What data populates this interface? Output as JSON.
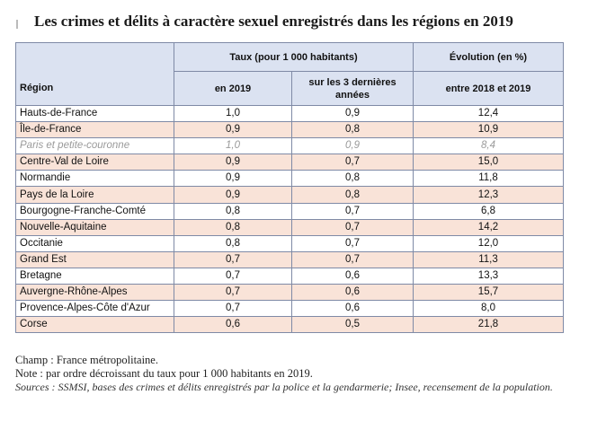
{
  "title": "Les crimes et délits à caractère sexuel enregistrés dans les régions en 2019",
  "header": {
    "taux_group": "Taux (pour 1 000 habitants)",
    "evolution_group": "Évolution (en %)",
    "region": "Région",
    "col_2019": "en 2019",
    "col_3ans_line1": "sur les 3 dernières",
    "col_3ans_line2": "années",
    "col_evolution": "entre 2018 et 2019"
  },
  "rows": [
    {
      "region": "Hauts-de-France",
      "taux_2019": "1,0",
      "taux_3ans": "0,9",
      "evolution": "12,4"
    },
    {
      "region": "Île-de-France",
      "taux_2019": "0,9",
      "taux_3ans": "0,8",
      "evolution": "10,9"
    },
    {
      "region": "Paris et petite-couronne",
      "taux_2019": "1,0",
      "taux_3ans": "0,9",
      "evolution": "8,4"
    },
    {
      "region": "Centre-Val de Loire",
      "taux_2019": "0,9",
      "taux_3ans": "0,7",
      "evolution": "15,0"
    },
    {
      "region": "Normandie",
      "taux_2019": "0,9",
      "taux_3ans": "0,8",
      "evolution": "11,8"
    },
    {
      "region": "Pays de la Loire",
      "taux_2019": "0,9",
      "taux_3ans": "0,8",
      "evolution": "12,3"
    },
    {
      "region": "Bourgogne-Franche-Comté",
      "taux_2019": "0,8",
      "taux_3ans": "0,7",
      "evolution": "6,8"
    },
    {
      "region": "Nouvelle-Aquitaine",
      "taux_2019": "0,8",
      "taux_3ans": "0,7",
      "evolution": "14,2"
    },
    {
      "region": "Occitanie",
      "taux_2019": "0,8",
      "taux_3ans": "0,7",
      "evolution": "12,0"
    },
    {
      "region": "Grand Est",
      "taux_2019": "0,7",
      "taux_3ans": "0,7",
      "evolution": "11,3"
    },
    {
      "region": "Bretagne",
      "taux_2019": "0,7",
      "taux_3ans": "0,6",
      "evolution": "13,3"
    },
    {
      "region": "Auvergne-Rhône-Alpes",
      "taux_2019": "0,7",
      "taux_3ans": "0,6",
      "evolution": "15,7"
    },
    {
      "region": "Provence-Alpes-Côte d'Azur",
      "taux_2019": "0,7",
      "taux_3ans": "0,6",
      "evolution": "8,0"
    },
    {
      "region": "Corse",
      "taux_2019": "0,6",
      "taux_3ans": "0,5",
      "evolution": "21,8"
    }
  ],
  "notes": {
    "champ": "Champ : France métropolitaine.",
    "note": "Note : par ordre décroissant du taux pour 1 000 habitants en 2019.",
    "sources": "Sources : SSMSI, bases des crimes et délits enregistrés par la police et la gendarmerie; Insee, recensement de la population."
  }
}
